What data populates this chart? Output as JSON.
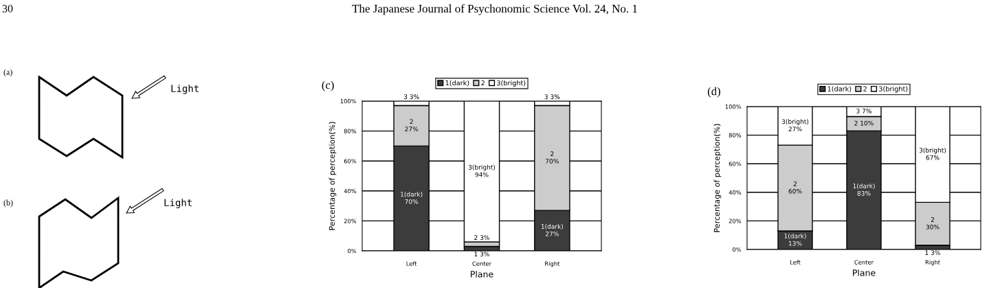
{
  "chart_data": [
    {
      "type": "other",
      "annotations": [
        "30",
        "The Japanese Journal of Psychonomic Science Vol. 24, No. 1",
        "(a)",
        "Light",
        "(b)",
        "Light"
      ]
    },
    {
      "type": "bar",
      "stacked": true,
      "annotations": [
        "(c)"
      ],
      "xlabel": "Plane",
      "ylabel": "Percentage of perception(%)",
      "categories": [
        "Left",
        "Center",
        "Right"
      ],
      "ylim": [
        0,
        100
      ],
      "yticks": [
        {
          "value": 0,
          "label": "0%"
        },
        {
          "value": 20,
          "label": "20%"
        },
        {
          "value": 40,
          "label": "40%"
        },
        {
          "value": 60,
          "label": "60%"
        },
        {
          "value": 80,
          "label": "80%"
        },
        {
          "value": 100,
          "label": "100%"
        }
      ],
      "grid": "y",
      "legend": "top",
      "series": [
        {
          "name": "1(dark)",
          "color": "#3c3c3c",
          "values": [
            70,
            3,
            27
          ],
          "value_labels": [
            "1(dark)\n70%",
            "1 3%",
            "1(dark)\n27%"
          ]
        },
        {
          "name": "2",
          "color": "#cccccc",
          "values": [
            27,
            3,
            70
          ],
          "value_labels": [
            "2\n27%",
            "2 3%",
            "2\n70%"
          ]
        },
        {
          "name": "3(bright)",
          "color": "#ffffff",
          "values": [
            3,
            94,
            3
          ],
          "value_labels": [
            "3 3%",
            "3(bright)\n94%",
            "3 3%"
          ]
        }
      ]
    },
    {
      "type": "bar",
      "stacked": true,
      "annotations": [
        "(d)"
      ],
      "xlabel": "Plane",
      "ylabel": "Percentage of perception(%)",
      "categories": [
        "Left",
        "Center",
        "Right"
      ],
      "ylim": [
        0,
        100
      ],
      "yticks": [
        {
          "value": 0,
          "label": "0%"
        },
        {
          "value": 20,
          "label": "20%"
        },
        {
          "value": 40,
          "label": "40%"
        },
        {
          "value": 60,
          "label": "60%"
        },
        {
          "value": 80,
          "label": "80%"
        },
        {
          "value": 100,
          "label": "100%"
        }
      ],
      "grid": "y",
      "legend": "top",
      "series": [
        {
          "name": "1(dark)",
          "color": "#3c3c3c",
          "values": [
            13,
            83,
            3
          ],
          "value_labels": [
            "1(dark)\n13%",
            "1(dark)\n83%",
            "1 3%"
          ]
        },
        {
          "name": "2",
          "color": "#cccccc",
          "values": [
            60,
            10,
            30
          ],
          "value_labels": [
            "2\n60%",
            "2 10%",
            "2\n30%"
          ]
        },
        {
          "name": "3(bright)",
          "color": "#ffffff",
          "values": [
            27,
            7,
            67
          ],
          "value_labels": [
            "3(bright)\n27%",
            "3 7%",
            "3(bright)\n67%"
          ]
        }
      ]
    }
  ]
}
